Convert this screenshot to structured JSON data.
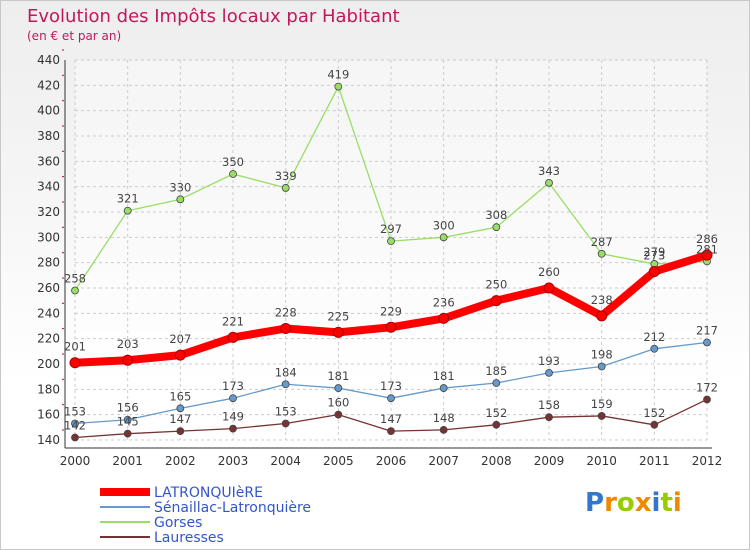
{
  "chart_data": {
    "type": "line",
    "title": "Evolution des Impôts locaux par Habitant",
    "subtitle": "(en € et par an)",
    "x": [
      "2000",
      "2001",
      "2002",
      "2003",
      "2004",
      "2005",
      "2006",
      "2007",
      "2008",
      "2009",
      "2010",
      "2011",
      "2012"
    ],
    "ylim": [
      140,
      440
    ],
    "yticks": [
      140,
      160,
      180,
      200,
      220,
      240,
      260,
      280,
      300,
      320,
      340,
      360,
      380,
      400,
      420,
      440
    ],
    "grid": true,
    "legend_position": "bottom-left",
    "series": [
      {
        "name": "LATRONQUIèRE",
        "color": "#ff0000",
        "values": [
          201,
          203,
          207,
          221,
          228,
          225,
          229,
          236,
          250,
          260,
          238,
          273,
          286
        ]
      },
      {
        "name": "Sénaillac-Latronquière",
        "color": "#6699cc",
        "values": [
          153,
          156,
          165,
          173,
          184,
          181,
          173,
          181,
          185,
          193,
          198,
          212,
          217
        ]
      },
      {
        "name": "Gorses",
        "color": "#99dd66",
        "values": [
          258,
          321,
          330,
          350,
          339,
          419,
          297,
          300,
          308,
          343,
          287,
          279,
          281
        ]
      },
      {
        "name": "Lauresses",
        "color": "#773333",
        "values": [
          142,
          145,
          147,
          149,
          153,
          160,
          147,
          148,
          152,
          158,
          159,
          152,
          172
        ]
      }
    ]
  },
  "logo": {
    "letters": [
      "P",
      "r",
      "o",
      "x",
      "i",
      "t",
      "i"
    ],
    "colors": [
      "#3377cc",
      "#ee8800",
      "#99cc00",
      "#ee8800",
      "#3377cc",
      "#99cc00",
      "#ee8800"
    ]
  }
}
